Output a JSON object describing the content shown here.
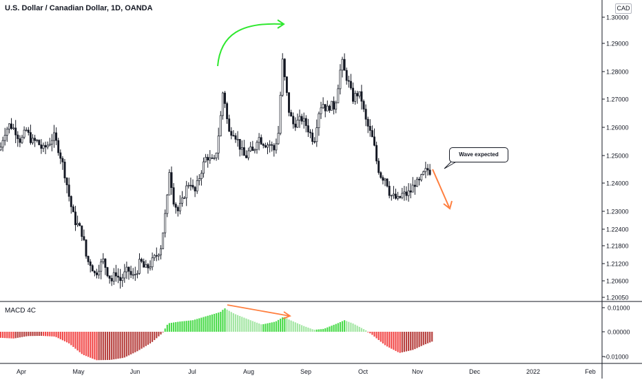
{
  "header": {
    "title": "U.S. Dollar / Canadian Dollar, 1D, OANDA",
    "currency_badge": "CAD"
  },
  "annotations": {
    "callout_text": "Wave expected"
  },
  "colors": {
    "candle": "#131722",
    "price_axis_text": "#131722",
    "green_arrow": "#2ee82e",
    "orange_arrow": "#ff7f3f",
    "macd_pos_rising": "#4cdb4c",
    "macd_pos_falling": "#a3e6a3",
    "macd_neg_falling": "#f24a4a",
    "macd_neg_rising": "#b7413f",
    "grid": "#e0e3eb"
  },
  "chart_data": [
    {
      "type": "candlestick",
      "title": "U.S. Dollar / Canadian Dollar, 1D, OANDA",
      "ylabel": "",
      "y_ticks": [
        1.3,
        1.29,
        1.28,
        1.27,
        1.26,
        1.25,
        1.24,
        1.23,
        1.224,
        1.218,
        1.212,
        1.206,
        1.2005
      ],
      "y_tick_labels": [
        "1.30000",
        "1.29000",
        "1.28000",
        "1.27000",
        "1.26000",
        "1.25000",
        "1.24000",
        "1.23000",
        "1.22400",
        "1.21800",
        "1.21200",
        "1.20600",
        "1.20050"
      ],
      "x_tick_labels": [
        "Apr",
        "May",
        "Jun",
        "Jul",
        "Aug",
        "Sep",
        "Oct",
        "Nov",
        "Dec",
        "2022",
        "Feb"
      ],
      "close_path": [
        [
          0,
          1.252
        ],
        [
          6,
          1.258
        ],
        [
          14,
          1.261
        ],
        [
          22,
          1.259
        ],
        [
          30,
          1.255
        ],
        [
          38,
          1.259
        ],
        [
          46,
          1.255
        ],
        [
          54,
          1.255
        ],
        [
          62,
          1.252
        ],
        [
          70,
          1.254
        ],
        [
          78,
          1.257
        ],
        [
          84,
          1.253
        ],
        [
          90,
          1.248
        ],
        [
          96,
          1.241
        ],
        [
          102,
          1.233
        ],
        [
          108,
          1.227
        ],
        [
          114,
          1.225
        ],
        [
          120,
          1.222
        ],
        [
          126,
          1.213
        ],
        [
          132,
          1.212
        ],
        [
          138,
          1.208
        ],
        [
          144,
          1.211
        ],
        [
          150,
          1.213
        ],
        [
          156,
          1.209
        ],
        [
          162,
          1.206
        ],
        [
          168,
          1.209
        ],
        [
          174,
          1.206
        ],
        [
          180,
          1.208
        ],
        [
          186,
          1.21
        ],
        [
          192,
          1.207
        ],
        [
          198,
          1.209
        ],
        [
          204,
          1.213
        ],
        [
          210,
          1.21
        ],
        [
          216,
          1.211
        ],
        [
          222,
          1.213
        ],
        [
          228,
          1.215
        ],
        [
          234,
          1.218
        ],
        [
          238,
          1.226
        ],
        [
          242,
          1.232
        ],
        [
          246,
          1.245
        ],
        [
          252,
          1.234
        ],
        [
          258,
          1.23
        ],
        [
          264,
          1.233
        ],
        [
          270,
          1.238
        ],
        [
          276,
          1.241
        ],
        [
          282,
          1.236
        ],
        [
          288,
          1.241
        ],
        [
          294,
          1.246
        ],
        [
          300,
          1.25
        ],
        [
          306,
          1.248
        ],
        [
          312,
          1.248
        ],
        [
          316,
          1.255
        ],
        [
          320,
          1.263
        ],
        [
          324,
          1.274
        ],
        [
          328,
          1.266
        ],
        [
          332,
          1.258
        ],
        [
          338,
          1.259
        ],
        [
          344,
          1.256
        ],
        [
          350,
          1.252
        ],
        [
          356,
          1.249
        ],
        [
          362,
          1.252
        ],
        [
          368,
          1.251
        ],
        [
          374,
          1.257
        ],
        [
          380,
          1.255
        ],
        [
          386,
          1.254
        ],
        [
          392,
          1.254
        ],
        [
          398,
          1.252
        ],
        [
          404,
          1.258
        ],
        [
          410,
          1.284
        ],
        [
          414,
          1.276
        ],
        [
          420,
          1.265
        ],
        [
          426,
          1.261
        ],
        [
          432,
          1.262
        ],
        [
          438,
          1.263
        ],
        [
          444,
          1.261
        ],
        [
          450,
          1.258
        ],
        [
          456,
          1.255
        ],
        [
          462,
          1.265
        ],
        [
          468,
          1.269
        ],
        [
          474,
          1.266
        ],
        [
          480,
          1.268
        ],
        [
          486,
          1.267
        ],
        [
          492,
          1.277
        ],
        [
          496,
          1.284
        ],
        [
          500,
          1.28
        ],
        [
          506,
          1.276
        ],
        [
          512,
          1.27
        ],
        [
          518,
          1.272
        ],
        [
          524,
          1.271
        ],
        [
          530,
          1.263
        ],
        [
          536,
          1.259
        ],
        [
          542,
          1.255
        ],
        [
          548,
          1.246
        ],
        [
          554,
          1.242
        ],
        [
          560,
          1.242
        ],
        [
          566,
          1.236
        ],
        [
          572,
          1.235
        ],
        [
          578,
          1.234
        ],
        [
          584,
          1.236
        ],
        [
          590,
          1.236
        ],
        [
          596,
          1.237
        ],
        [
          602,
          1.24
        ],
        [
          608,
          1.24
        ],
        [
          614,
          1.243
        ],
        [
          620,
          1.245
        ],
        [
          626,
          1.244
        ]
      ]
    },
    {
      "type": "bar",
      "title": "MACD 4C",
      "y_ticks": [
        0.01,
        0.0,
        -0.01
      ],
      "y_tick_labels": [
        "0.01000",
        "0.00000",
        "-0.01000"
      ],
      "histogram_path": [
        [
          0,
          -0.0025
        ],
        [
          20,
          -0.0028
        ],
        [
          40,
          -0.0018
        ],
        [
          60,
          -0.0017
        ],
        [
          80,
          -0.002
        ],
        [
          100,
          -0.0048
        ],
        [
          120,
          -0.0095
        ],
        [
          140,
          -0.0118
        ],
        [
          160,
          -0.0117
        ],
        [
          180,
          -0.0108
        ],
        [
          200,
          -0.008
        ],
        [
          220,
          -0.0045
        ],
        [
          236,
          -0.0005
        ],
        [
          244,
          0.0035
        ],
        [
          260,
          0.0042
        ],
        [
          280,
          0.0048
        ],
        [
          300,
          0.0065
        ],
        [
          320,
          0.0082
        ],
        [
          326,
          0.0098
        ],
        [
          340,
          0.0075
        ],
        [
          360,
          0.0052
        ],
        [
          380,
          0.003
        ],
        [
          400,
          0.0042
        ],
        [
          412,
          0.0063
        ],
        [
          420,
          0.005
        ],
        [
          440,
          0.0025
        ],
        [
          456,
          0.0008
        ],
        [
          470,
          0.0012
        ],
        [
          490,
          0.0035
        ],
        [
          500,
          0.0048
        ],
        [
          512,
          0.0035
        ],
        [
          530,
          0.0008
        ],
        [
          540,
          -0.0012
        ],
        [
          560,
          -0.0058
        ],
        [
          580,
          -0.0088
        ],
        [
          600,
          -0.0075
        ],
        [
          615,
          -0.0055
        ],
        [
          628,
          -0.004
        ]
      ]
    }
  ]
}
